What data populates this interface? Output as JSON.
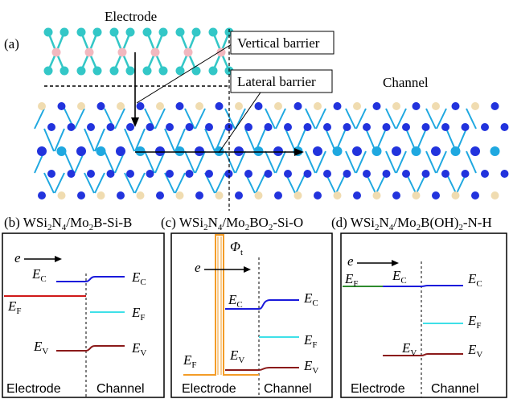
{
  "figure": {
    "panel_a": {
      "tag": "(a)",
      "electrode": "Electrode",
      "channel": "Channel",
      "vertical_barrier": "Vertical barrier",
      "lateral_barrier": "Lateral barrier"
    },
    "panels": [
      {
        "tag": "(b)",
        "title_pre": "WSi",
        "title_mid1": "N",
        "title_mid2": "/Mo",
        "title_post": "B-Si-B",
        "sub1": "2",
        "sub2": "4",
        "sub3": "2"
      },
      {
        "tag": "(c)",
        "title_pre": "WSi",
        "title_mid1": "N",
        "title_mid2": "/Mo",
        "title_mid3": "BO",
        "title_post": "-Si-O",
        "sub1": "2",
        "sub2": "4",
        "sub3": "2",
        "sub4": "2"
      },
      {
        "tag": "(d)",
        "title_pre": "WSi",
        "title_mid1": "N",
        "title_mid2": "/Mo",
        "title_mid3": "B(OH)",
        "title_post": "-N-H",
        "sub1": "2",
        "sub2": "4",
        "sub3": "2",
        "sub4": "2"
      }
    ],
    "band_labels": {
      "e": "e",
      "E": "E",
      "C": "C",
      "F": "F",
      "V": "V",
      "phi": "Φ",
      "phi_sub": "t"
    },
    "bottom": {
      "electrode": "Electrode",
      "channel": "Channel"
    },
    "colors": {
      "ec": "#1a1adb",
      "ef_electrode_b": "#d01818",
      "ef_channel": "#3fe0e8",
      "ev": "#8b1a1a",
      "barrier": "#f39c27",
      "ef_electrode_d": "#2e8b2e",
      "atom_electrode_light": "#f2b8bf",
      "atom_electrode_teal": "#33c7c7",
      "atom_channel_blue": "#2233dd",
      "atom_channel_tan": "#f0dcb0",
      "atom_channel_cyan": "#1fa8e0"
    }
  }
}
